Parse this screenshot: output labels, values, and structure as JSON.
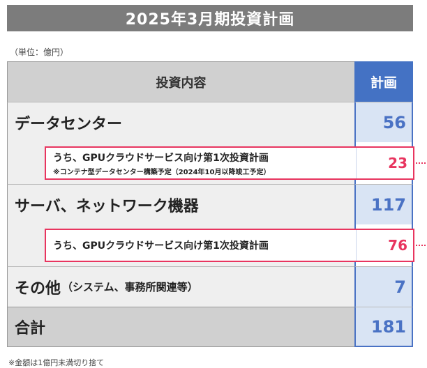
{
  "title": "2025年3月期投資計画",
  "unit_note": "（単位：億円）",
  "header": {
    "content_label": "投資内容",
    "plan_label": "計画"
  },
  "rows": {
    "datacenter": {
      "label": "データセンター",
      "value": "56"
    },
    "datacenter_sub": {
      "label": "うち、GPUクラウドサービス向け第1次投資計画",
      "note": "※コンテナ型データセンター構築予定（2024年10月以降竣工予定）",
      "value": "23"
    },
    "server": {
      "label": "サーバ、ネットワーク機器",
      "value": "117"
    },
    "server_sub": {
      "label": "うち、GPUクラウドサービス向け第1次投資計画",
      "value": "76"
    },
    "other": {
      "label": "その他",
      "note": "（システム、事務所関連等）",
      "value": "7"
    },
    "total": {
      "label": "合計",
      "value": "181"
    }
  },
  "footnote": "※金額は1億円未満切り捨て",
  "colors": {
    "accent_blue": "#4472c4",
    "highlight_pink": "#e8355f",
    "header_gray": "#7c7c7c"
  }
}
